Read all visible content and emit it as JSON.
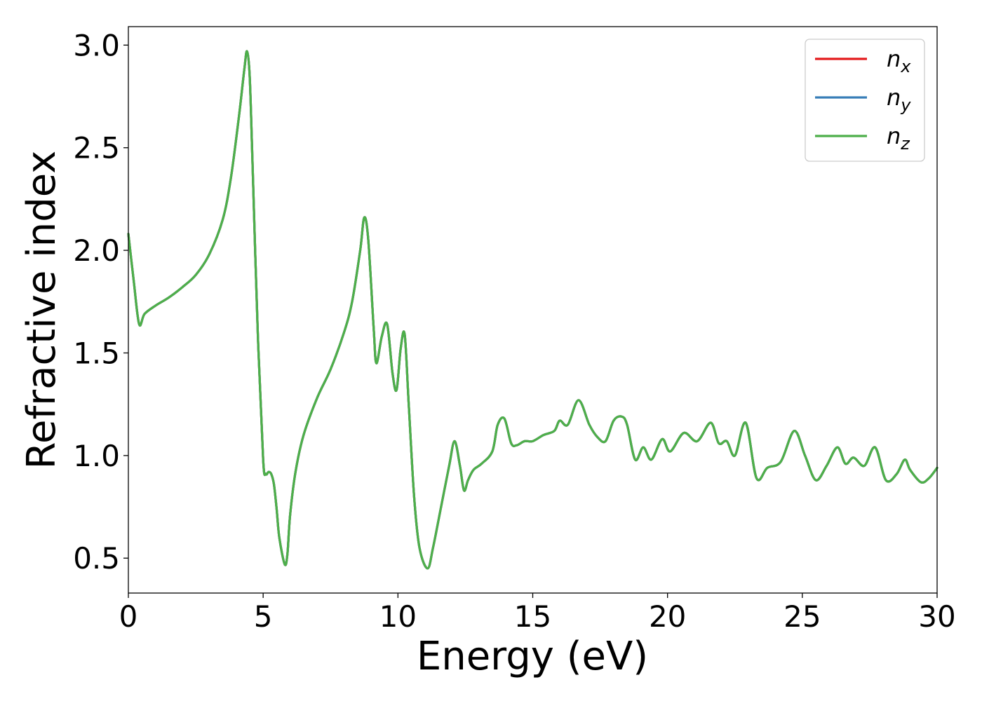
{
  "chart_data": {
    "type": "line",
    "xlabel": "Energy (eV)",
    "ylabel": "Refractive index",
    "xlim": [
      0,
      30
    ],
    "ylim": [
      0.33,
      3.09
    ],
    "xticks": [
      0,
      5,
      10,
      15,
      20,
      25,
      30
    ],
    "xtick_labels": [
      "0",
      "5",
      "10",
      "15",
      "20",
      "25",
      "30"
    ],
    "yticks": [
      0.5,
      1.0,
      1.5,
      2.0,
      2.5,
      3.0
    ],
    "ytick_labels": [
      "0.5",
      "1.0",
      "1.5",
      "2.0",
      "2.5",
      "3.0"
    ],
    "grid": false,
    "legend_position": "top-right",
    "series": [
      {
        "name": "n",
        "subscript": "x",
        "color": "#e41a1c",
        "ref": "nz"
      },
      {
        "name": "n",
        "subscript": "y",
        "color": "#377eb8",
        "ref": "nz"
      },
      {
        "name": "n",
        "subscript": "z",
        "color": "#4daf4a",
        "ref": "nz"
      }
    ],
    "nz": {
      "x": [
        0,
        0.2,
        0.4,
        0.6,
        1.0,
        1.5,
        2.0,
        2.5,
        3.0,
        3.5,
        3.8,
        4.1,
        4.3,
        4.4,
        4.5,
        4.6,
        4.8,
        5.0,
        5.1,
        5.2,
        5.3,
        5.4,
        5.5,
        5.6,
        5.8,
        5.9,
        6.0,
        6.2,
        6.5,
        7.0,
        7.5,
        8.0,
        8.3,
        8.6,
        8.75,
        8.9,
        9.1,
        9.2,
        9.4,
        9.6,
        9.8,
        9.95,
        10.1,
        10.25,
        10.4,
        10.6,
        10.8,
        11.1,
        11.3,
        11.6,
        11.9,
        12.1,
        12.3,
        12.45,
        12.6,
        12.8,
        13.1,
        13.5,
        13.7,
        13.95,
        14.2,
        14.4,
        14.7,
        15.0,
        15.4,
        15.8,
        16.0,
        16.3,
        16.7,
        17.1,
        17.4,
        17.7,
        18.0,
        18.3,
        18.5,
        18.8,
        19.1,
        19.4,
        19.8,
        20.1,
        20.6,
        21.1,
        21.6,
        21.9,
        22.2,
        22.5,
        22.9,
        23.3,
        23.7,
        24.2,
        24.7,
        25.1,
        25.5,
        25.9,
        26.3,
        26.6,
        26.9,
        27.3,
        27.7,
        28.1,
        28.5,
        28.8,
        29.0,
        29.4,
        29.7,
        30.0
      ],
      "y": [
        2.08,
        1.85,
        1.64,
        1.69,
        1.73,
        1.77,
        1.82,
        1.88,
        1.98,
        2.15,
        2.35,
        2.65,
        2.88,
        2.97,
        2.85,
        2.45,
        1.6,
        0.98,
        0.91,
        0.92,
        0.91,
        0.86,
        0.74,
        0.6,
        0.47,
        0.52,
        0.71,
        0.92,
        1.1,
        1.28,
        1.42,
        1.6,
        1.75,
        2.0,
        2.16,
        2.05,
        1.62,
        1.45,
        1.58,
        1.64,
        1.4,
        1.32,
        1.52,
        1.59,
        1.25,
        0.8,
        0.55,
        0.45,
        0.55,
        0.75,
        0.95,
        1.07,
        0.95,
        0.83,
        0.88,
        0.93,
        0.96,
        1.02,
        1.15,
        1.18,
        1.06,
        1.05,
        1.07,
        1.07,
        1.1,
        1.12,
        1.17,
        1.15,
        1.27,
        1.15,
        1.09,
        1.07,
        1.17,
        1.19,
        1.15,
        0.98,
        1.04,
        0.98,
        1.08,
        1.02,
        1.11,
        1.07,
        1.16,
        1.06,
        1.07,
        1.0,
        1.16,
        0.89,
        0.94,
        0.97,
        1.12,
        1.0,
        0.88,
        0.95,
        1.04,
        0.96,
        0.99,
        0.95,
        1.04,
        0.88,
        0.91,
        0.98,
        0.93,
        0.87,
        0.89,
        0.94
      ]
    }
  }
}
